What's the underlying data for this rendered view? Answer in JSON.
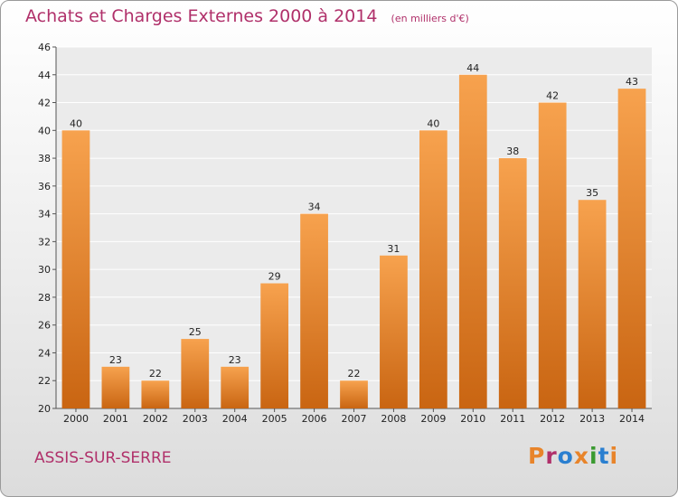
{
  "chart_data": {
    "type": "bar",
    "title": "Achats et Charges Externes 2000 à 2014",
    "subtitle": "(en milliers d'€)",
    "categories": [
      "2000",
      "2001",
      "2002",
      "2003",
      "2004",
      "2005",
      "2006",
      "2007",
      "2008",
      "2009",
      "2010",
      "2011",
      "2012",
      "2013",
      "2014"
    ],
    "values": [
      40,
      23,
      22,
      25,
      23,
      29,
      34,
      22,
      31,
      40,
      44,
      38,
      42,
      35,
      43
    ],
    "ylim": [
      20,
      46
    ],
    "yticks": [
      20,
      22,
      24,
      26,
      28,
      30,
      32,
      34,
      36,
      38,
      40,
      42,
      44,
      46
    ],
    "grid": true,
    "bar_color": "#e8842a"
  },
  "footer": {
    "commune": "ASSIS-SUR-SERRE",
    "brand": "Proxiti",
    "brand_colors": [
      "#e8842a",
      "#b0306a",
      "#2a7fd0",
      "#e8842a",
      "#3a9a30",
      "#2a7fd0",
      "#e8842a"
    ]
  }
}
